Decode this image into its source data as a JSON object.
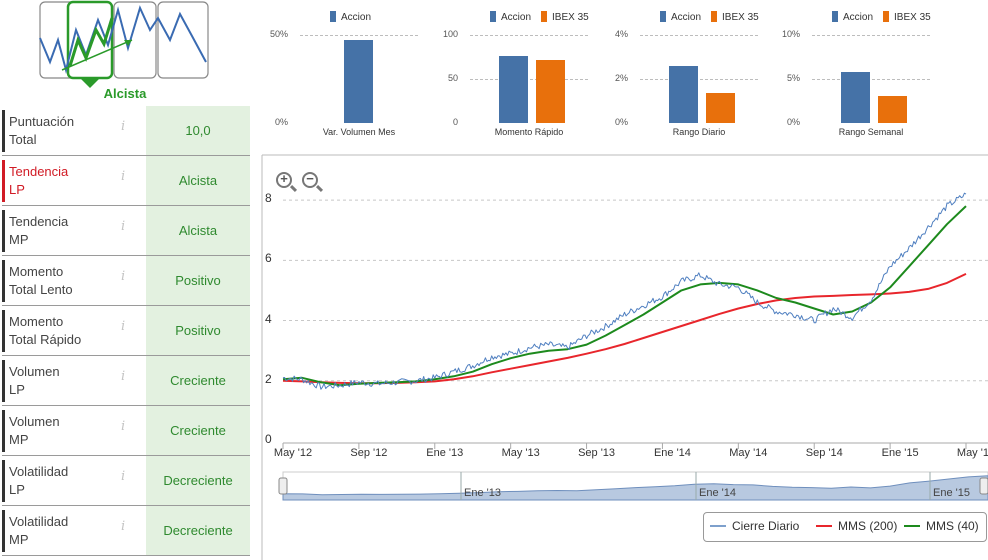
{
  "trend_icon": {
    "label": "Alcista",
    "selected_index": 1
  },
  "factors": [
    {
      "name_line1": "Puntuación",
      "name_line2": "Total",
      "value": "10,0",
      "highlight": false
    },
    {
      "name_line1": "Tendencia",
      "name_line2": "LP",
      "value": "Alcista",
      "highlight": true
    },
    {
      "name_line1": "Tendencia",
      "name_line2": "MP",
      "value": "Alcista",
      "highlight": false
    },
    {
      "name_line1": "Momento",
      "name_line2": "Total Lento",
      "value": "Positivo",
      "highlight": false
    },
    {
      "name_line1": "Momento",
      "name_line2": "Total Rápido",
      "value": "Positivo",
      "highlight": false
    },
    {
      "name_line1": "Volumen",
      "name_line2": "LP",
      "value": "Creciente",
      "highlight": false
    },
    {
      "name_line1": "Volumen",
      "name_line2": "MP",
      "value": "Creciente",
      "highlight": false
    },
    {
      "name_line1": "Volatilidad",
      "name_line2": "LP",
      "value": "Decreciente",
      "highlight": false
    },
    {
      "name_line1": "Volatilidad",
      "name_line2": "MP",
      "value": "Decreciente",
      "highlight": false
    }
  ],
  "info_glyph": "i",
  "colors": {
    "accion": "#4572a7",
    "ibex": "#e8700c",
    "cierre": "#4f7fc0",
    "mms200": "#e8262c",
    "mms40": "#1d8a1d",
    "value_bg": "#e3f1e0"
  },
  "chart_data": [
    {
      "type": "bar",
      "title": "Var. Volumen Mes",
      "series": [
        {
          "name": "Accion",
          "values": [
            47
          ]
        }
      ],
      "ylim": [
        0,
        50
      ],
      "yticks": [
        "0%",
        "50%"
      ]
    },
    {
      "type": "bar",
      "title": "Momento Rápido",
      "series": [
        {
          "name": "Accion",
          "values": [
            76
          ]
        },
        {
          "name": "IBEX 35",
          "values": [
            72
          ]
        }
      ],
      "ylim": [
        0,
        100
      ],
      "yticks": [
        "0",
        "50",
        "100"
      ]
    },
    {
      "type": "bar",
      "title": "Rango Diario",
      "series": [
        {
          "name": "Accion",
          "values": [
            2.6
          ]
        },
        {
          "name": "IBEX 35",
          "values": [
            1.35
          ]
        }
      ],
      "ylim": [
        0,
        4
      ],
      "yticks": [
        "0%",
        "2%",
        "4%"
      ]
    },
    {
      "type": "bar",
      "title": "Rango Semanal",
      "series": [
        {
          "name": "Accion",
          "values": [
            5.8
          ]
        },
        {
          "name": "IBEX 35",
          "values": [
            3.1
          ]
        }
      ],
      "ylim": [
        0,
        10
      ],
      "yticks": [
        "0%",
        "5%",
        "10%"
      ]
    },
    {
      "type": "line",
      "x": [
        "May '12",
        "Jun '12",
        "Jul '12",
        "Ago '12",
        "Sep '12",
        "Oct '12",
        "Nov '12",
        "Dic '12",
        "Ene '13",
        "Feb '13",
        "Mar '13",
        "Abr '13",
        "May '13",
        "Jun '13",
        "Jul '13",
        "Ago '13",
        "Sep '13",
        "Oct '13",
        "Nov '13",
        "Dic '13",
        "Ene '14",
        "Feb '14",
        "Mar '14",
        "Abr '14",
        "May '14",
        "Jun '14",
        "Jul '14",
        "Ago '14",
        "Sep '14",
        "Oct '14",
        "Nov '14",
        "Dic '14",
        "Ene '15",
        "Feb '15",
        "Mar '15",
        "Abr '15",
        "May '15"
      ],
      "series": [
        {
          "name": "Cierre Diario",
          "values": [
            2.1,
            2.05,
            1.8,
            1.85,
            1.95,
            1.9,
            1.95,
            2.0,
            2.1,
            2.3,
            2.5,
            2.8,
            2.9,
            3.1,
            3.2,
            3.1,
            3.5,
            3.8,
            4.2,
            4.5,
            4.8,
            5.3,
            5.5,
            5.2,
            5.1,
            4.6,
            4.3,
            4.2,
            4.0,
            4.4,
            4.1,
            4.7,
            5.8,
            6.4,
            7.1,
            7.8,
            8.2
          ]
        },
        {
          "name": "MMS (200)",
          "values": [
            2.0,
            1.98,
            1.95,
            1.93,
            1.92,
            1.92,
            1.93,
            1.95,
            1.98,
            2.05,
            2.15,
            2.28,
            2.4,
            2.52,
            2.64,
            2.76,
            2.9,
            3.05,
            3.22,
            3.42,
            3.62,
            3.82,
            4.02,
            4.22,
            4.4,
            4.55,
            4.67,
            4.75,
            4.8,
            4.82,
            4.85,
            4.87,
            4.9,
            4.95,
            5.05,
            5.25,
            5.55
          ]
        },
        {
          "name": "MMS (40)",
          "values": [
            2.05,
            2.1,
            1.95,
            1.85,
            1.9,
            1.93,
            1.95,
            1.98,
            2.05,
            2.15,
            2.3,
            2.55,
            2.75,
            2.9,
            3.0,
            3.05,
            3.2,
            3.5,
            3.85,
            4.2,
            4.6,
            5.0,
            5.2,
            5.25,
            5.2,
            5.0,
            4.75,
            4.6,
            4.4,
            4.2,
            4.3,
            4.6,
            5.1,
            5.8,
            6.5,
            7.2,
            7.8
          ]
        }
      ],
      "ylim": [
        0,
        9
      ],
      "yticks": [
        "0",
        "2",
        "4",
        "6",
        "8"
      ],
      "xticks": [
        "May '12",
        "Sep '12",
        "Ene '13",
        "May '13",
        "Sep '13",
        "Ene '14",
        "May '14",
        "Sep '14",
        "Ene '15",
        "May '15"
      ],
      "navigator_labels": [
        "Ene '13",
        "Ene '14",
        "Ene '15"
      ]
    }
  ]
}
